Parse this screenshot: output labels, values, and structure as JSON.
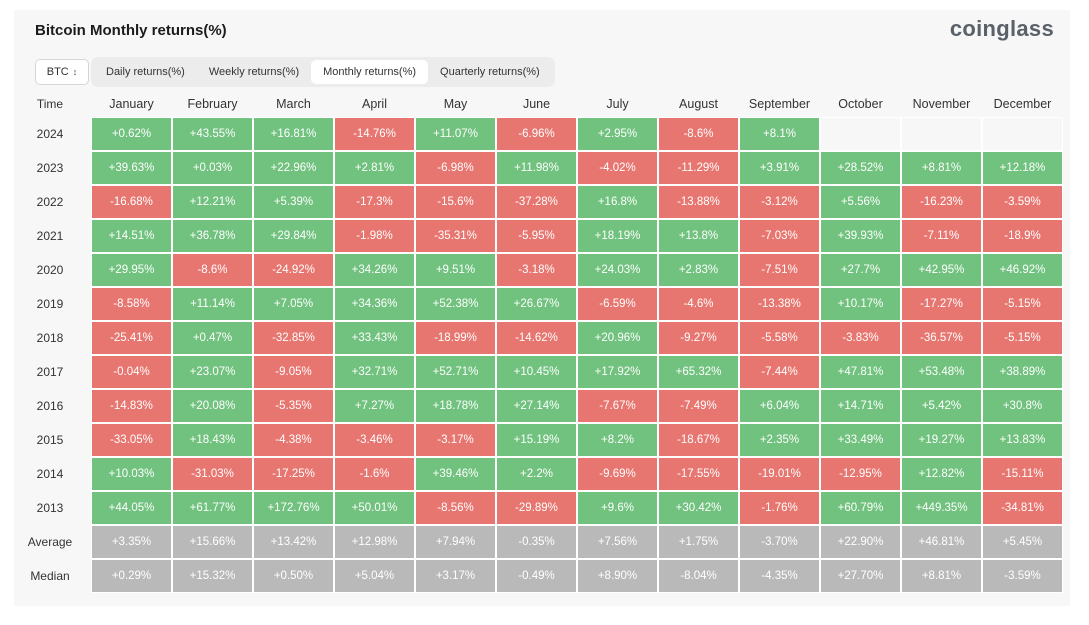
{
  "header": {
    "title": "Bitcoin Monthly returns(%)",
    "brand": "coinglass"
  },
  "asset_select": {
    "value": "BTC"
  },
  "tabs": [
    {
      "label": "Daily returns(%)",
      "active": false
    },
    {
      "label": "Weekly returns(%)",
      "active": false
    },
    {
      "label": "Monthly returns(%)",
      "active": true
    },
    {
      "label": "Quarterly returns(%)",
      "active": false
    }
  ],
  "colors": {
    "positive": "#70c27e",
    "negative": "#e87670",
    "stat": "#b9b9b9"
  },
  "table": {
    "time_header": "Time",
    "months": [
      "January",
      "February",
      "March",
      "April",
      "May",
      "June",
      "July",
      "August",
      "September",
      "October",
      "November",
      "December"
    ],
    "rows": [
      {
        "label": "2024",
        "values": [
          "+0.62%",
          "+43.55%",
          "+16.81%",
          "-14.76%",
          "+11.07%",
          "-6.96%",
          "+2.95%",
          "-8.6%",
          "+8.1%",
          "",
          "",
          ""
        ]
      },
      {
        "label": "2023",
        "values": [
          "+39.63%",
          "+0.03%",
          "+22.96%",
          "+2.81%",
          "-6.98%",
          "+11.98%",
          "-4.02%",
          "-11.29%",
          "+3.91%",
          "+28.52%",
          "+8.81%",
          "+12.18%"
        ]
      },
      {
        "label": "2022",
        "values": [
          "-16.68%",
          "+12.21%",
          "+5.39%",
          "-17.3%",
          "-15.6%",
          "-37.28%",
          "+16.8%",
          "-13.88%",
          "-3.12%",
          "+5.56%",
          "-16.23%",
          "-3.59%"
        ]
      },
      {
        "label": "2021",
        "values": [
          "+14.51%",
          "+36.78%",
          "+29.84%",
          "-1.98%",
          "-35.31%",
          "-5.95%",
          "+18.19%",
          "+13.8%",
          "-7.03%",
          "+39.93%",
          "-7.11%",
          "-18.9%"
        ]
      },
      {
        "label": "2020",
        "values": [
          "+29.95%",
          "-8.6%",
          "-24.92%",
          "+34.26%",
          "+9.51%",
          "-3.18%",
          "+24.03%",
          "+2.83%",
          "-7.51%",
          "+27.7%",
          "+42.95%",
          "+46.92%"
        ]
      },
      {
        "label": "2019",
        "values": [
          "-8.58%",
          "+11.14%",
          "+7.05%",
          "+34.36%",
          "+52.38%",
          "+26.67%",
          "-6.59%",
          "-4.6%",
          "-13.38%",
          "+10.17%",
          "-17.27%",
          "-5.15%"
        ]
      },
      {
        "label": "2018",
        "values": [
          "-25.41%",
          "+0.47%",
          "-32.85%",
          "+33.43%",
          "-18.99%",
          "-14.62%",
          "+20.96%",
          "-9.27%",
          "-5.58%",
          "-3.83%",
          "-36.57%",
          "-5.15%"
        ]
      },
      {
        "label": "2017",
        "values": [
          "-0.04%",
          "+23.07%",
          "-9.05%",
          "+32.71%",
          "+52.71%",
          "+10.45%",
          "+17.92%",
          "+65.32%",
          "-7.44%",
          "+47.81%",
          "+53.48%",
          "+38.89%"
        ]
      },
      {
        "label": "2016",
        "values": [
          "-14.83%",
          "+20.08%",
          "-5.35%",
          "+7.27%",
          "+18.78%",
          "+27.14%",
          "-7.67%",
          "-7.49%",
          "+6.04%",
          "+14.71%",
          "+5.42%",
          "+30.8%"
        ]
      },
      {
        "label": "2015",
        "values": [
          "-33.05%",
          "+18.43%",
          "-4.38%",
          "-3.46%",
          "-3.17%",
          "+15.19%",
          "+8.2%",
          "-18.67%",
          "+2.35%",
          "+33.49%",
          "+19.27%",
          "+13.83%"
        ]
      },
      {
        "label": "2014",
        "values": [
          "+10.03%",
          "-31.03%",
          "-17.25%",
          "-1.6%",
          "+39.46%",
          "+2.2%",
          "-9.69%",
          "-17.55%",
          "-19.01%",
          "-12.95%",
          "+12.82%",
          "-15.11%"
        ]
      },
      {
        "label": "2013",
        "values": [
          "+44.05%",
          "+61.77%",
          "+172.76%",
          "+50.01%",
          "-8.56%",
          "-29.89%",
          "+9.6%",
          "+30.42%",
          "-1.76%",
          "+60.79%",
          "+449.35%",
          "-34.81%"
        ]
      }
    ],
    "stats": [
      {
        "label": "Average",
        "values": [
          "+3.35%",
          "+15.66%",
          "+13.42%",
          "+12.98%",
          "+7.94%",
          "-0.35%",
          "+7.56%",
          "+1.75%",
          "-3.70%",
          "+22.90%",
          "+46.81%",
          "+5.45%"
        ]
      },
      {
        "label": "Median",
        "values": [
          "+0.29%",
          "+15.32%",
          "+0.50%",
          "+5.04%",
          "+3.17%",
          "-0.49%",
          "+8.90%",
          "-8.04%",
          "-4.35%",
          "+27.70%",
          "+8.81%",
          "-3.59%"
        ]
      }
    ]
  }
}
